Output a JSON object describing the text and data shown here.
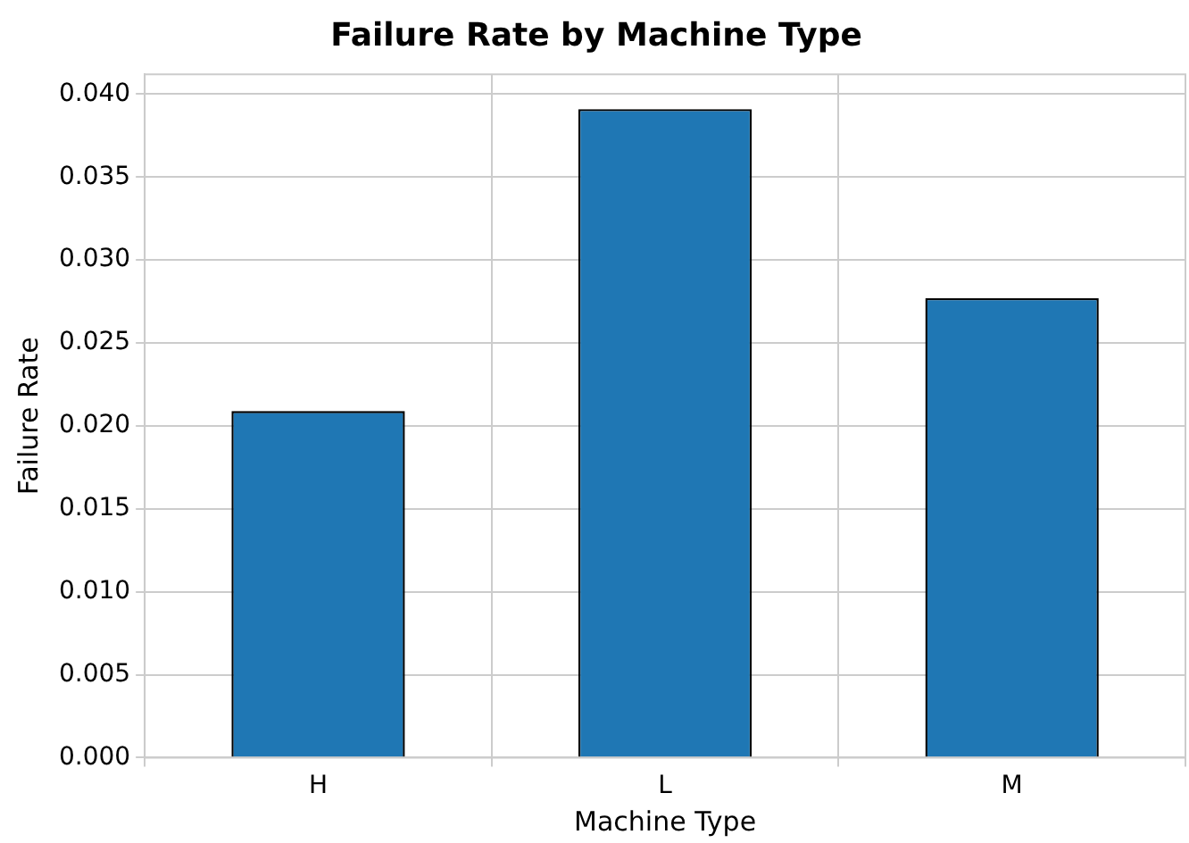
{
  "chart_data": {
    "type": "bar",
    "title": "Failure Rate by Machine Type",
    "xlabel": "Machine Type",
    "ylabel": "Failure Rate",
    "categories": [
      "H",
      "L",
      "M"
    ],
    "values": [
      0.0209,
      0.0391,
      0.0277
    ],
    "color": "#1f77b4",
    "ylim": [
      0,
      0.0412
    ],
    "yticks": [
      {
        "value": 0,
        "label": "0.000"
      },
      {
        "value": 0.005,
        "label": "0.005"
      },
      {
        "value": 0.01,
        "label": "0.010"
      },
      {
        "value": 0.015,
        "label": "0.015"
      },
      {
        "value": 0.02,
        "label": "0.020"
      },
      {
        "value": 0.025,
        "label": "0.025"
      },
      {
        "value": 0.03,
        "label": "0.030"
      },
      {
        "value": 0.035,
        "label": "0.035"
      },
      {
        "value": 0.04,
        "label": "0.040"
      }
    ],
    "grid": true,
    "legend": false
  }
}
